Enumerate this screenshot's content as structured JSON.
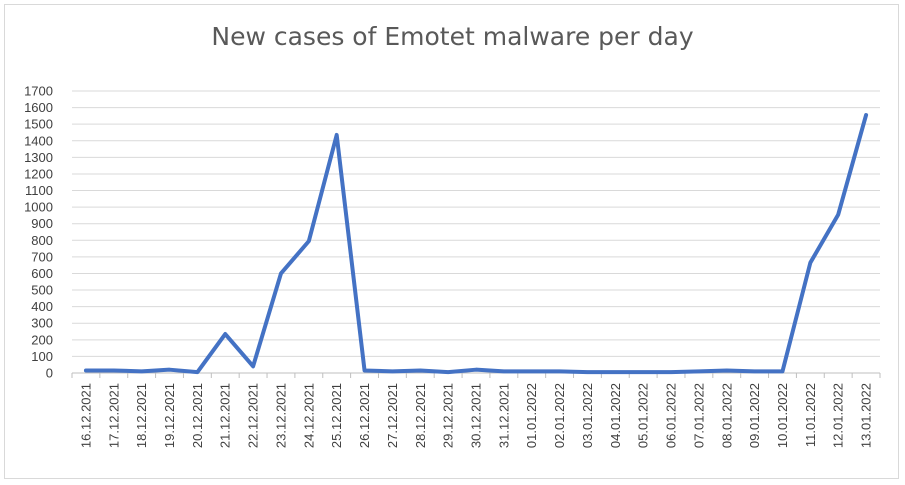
{
  "chart_data": {
    "type": "line",
    "title": "New cases of Emotet malware per day",
    "xlabel": "",
    "ylabel": "",
    "ylim": [
      0,
      1700
    ],
    "ytick_step": 100,
    "grid": true,
    "legend": "none",
    "line_color": "#4472c4",
    "categories": [
      "16.12.2021",
      "17.12.2021",
      "18.12.2021",
      "19.12.2021",
      "20.12.2021",
      "21.12.2021",
      "22.12.2021",
      "23.12.2021",
      "24.12.2021",
      "25.12.2021",
      "26.12.2021",
      "27.12.2021",
      "28.12.2021",
      "29.12.2021",
      "30.12.2021",
      "31.12.2021",
      "01.01.2022",
      "02.01.2022",
      "03.01.2022",
      "04.01.2022",
      "05.01.2022",
      "06.01.2022",
      "07.01.2022",
      "08.01.2022",
      "09.01.2022",
      "10.01.2022",
      "11.01.2022",
      "12.01.2022",
      "13.01.2022"
    ],
    "series": [
      {
        "values": [
          15,
          15,
          10,
          20,
          5,
          235,
          40,
          600,
          795,
          1435,
          15,
          10,
          15,
          5,
          20,
          10,
          10,
          10,
          5,
          5,
          5,
          5,
          10,
          15,
          10,
          10,
          665,
          955,
          1555
        ]
      }
    ]
  }
}
